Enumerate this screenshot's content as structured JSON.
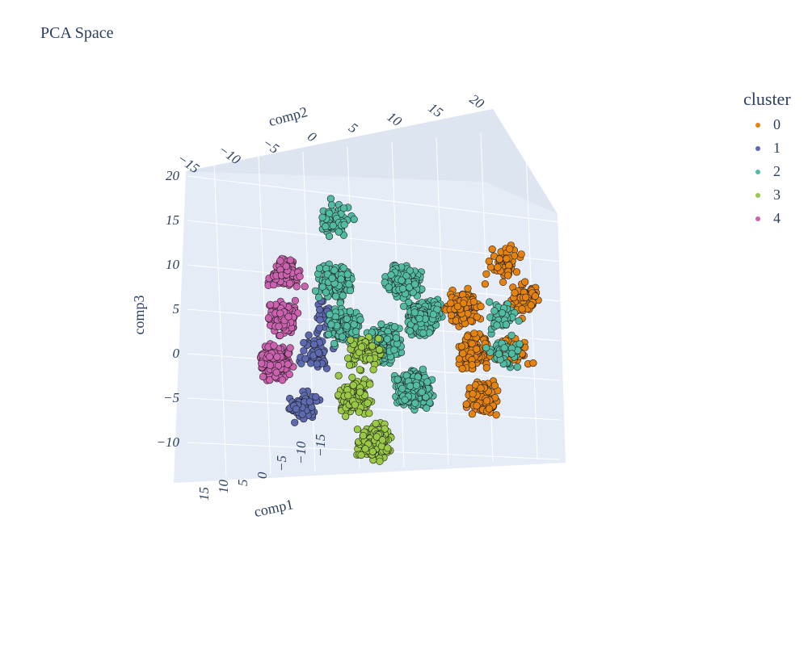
{
  "chart_data": {
    "type": "scatter",
    "subtype": "scatter3d",
    "title": "PCA Space",
    "axes": {
      "x": {
        "title": "comp1",
        "ticks": [
          "15",
          "10",
          "5",
          "0",
          "−5",
          "−10",
          "−15"
        ]
      },
      "y": {
        "title": "comp2",
        "ticks": [
          "−15",
          "−10",
          "−5",
          "0",
          "5",
          "10",
          "15",
          "20"
        ]
      },
      "z": {
        "title": "comp3",
        "ticks": [
          "20",
          "15",
          "10",
          "5",
          "0",
          "−5",
          "−10"
        ],
        "range": [
          -13,
          21
        ]
      }
    },
    "legend": {
      "title": "cluster",
      "placement": "right"
    },
    "series": [
      {
        "name": "0",
        "color": "#e6820e",
        "approx_point_count": 800,
        "groups": [
          {
            "comp2": 13,
            "comp3": 10,
            "n": 55
          },
          {
            "comp2": 15,
            "comp3": 6,
            "n": 80
          },
          {
            "comp2": 9,
            "comp3": 5,
            "n": 120
          },
          {
            "comp2": 10,
            "comp3": 0,
            "n": 140
          },
          {
            "comp2": 14,
            "comp3": 0,
            "n": 50
          },
          {
            "comp2": 11,
            "comp3": -5,
            "n": 120
          }
        ]
      },
      {
        "name": "1",
        "color": "#5d69b1",
        "approx_point_count": 150,
        "groups": [
          {
            "comp2": -6,
            "comp3": 0,
            "n": 60
          },
          {
            "comp2": -7,
            "comp3": -6,
            "n": 60
          },
          {
            "comp2": -5,
            "comp3": 4,
            "n": 30
          }
        ]
      },
      {
        "name": "2",
        "color": "#52bca3",
        "approx_point_count": 1900,
        "groups": [
          {
            "comp2": -4,
            "comp3": 15,
            "n": 70
          },
          {
            "comp2": -4,
            "comp3": 8,
            "n": 160
          },
          {
            "comp2": -3,
            "comp3": 3,
            "n": 160
          },
          {
            "comp2": 1,
            "comp3": 1,
            "n": 300
          },
          {
            "comp2": 4,
            "comp3": -4,
            "n": 450
          },
          {
            "comp2": 5,
            "comp3": 4,
            "n": 300
          },
          {
            "comp2": 3,
            "comp3": 8,
            "n": 140
          },
          {
            "comp2": 13,
            "comp3": 4,
            "n": 40
          },
          {
            "comp2": 13,
            "comp3": 0,
            "n": 40
          }
        ]
      },
      {
        "name": "3",
        "color": "#99c945",
        "approx_point_count": 450,
        "groups": [
          {
            "comp2": -1,
            "comp3": 0,
            "n": 90
          },
          {
            "comp2": -2,
            "comp3": -5,
            "n": 120
          },
          {
            "comp2": 0,
            "comp3": -10,
            "n": 200
          }
        ]
      },
      {
        "name": "4",
        "color": "#cc61b0",
        "approx_point_count": 450,
        "groups": [
          {
            "comp2": -9,
            "comp3": 9,
            "n": 90
          },
          {
            "comp2": -9,
            "comp3": 4,
            "n": 130
          },
          {
            "comp2": -10,
            "comp3": -1,
            "n": 200
          }
        ]
      }
    ]
  }
}
